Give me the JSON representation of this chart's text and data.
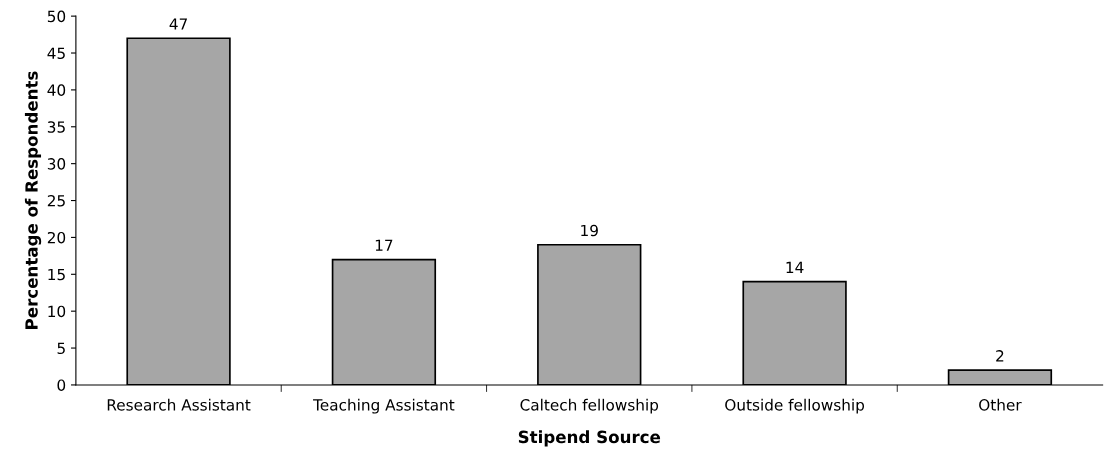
{
  "chart_data": {
    "type": "bar",
    "xlabel": "Stipend Source",
    "ylabel": "Percentage of Respondents",
    "categories": [
      "Research Assistant",
      "Teaching Assistant",
      "Caltech fellowship",
      "Outside fellowship",
      "Other"
    ],
    "values": [
      47,
      17,
      19,
      14,
      2
    ],
    "color": "#a6a6a6",
    "ylim": [
      0,
      50
    ],
    "yticks": [
      0,
      5,
      10,
      15,
      20,
      25,
      30,
      35,
      40,
      45,
      50
    ],
    "grid": false,
    "data_labels": true
  }
}
